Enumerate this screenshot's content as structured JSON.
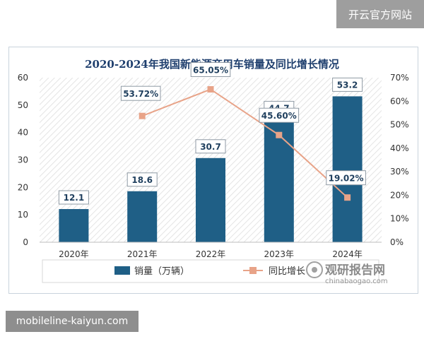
{
  "header": {
    "site_name": "开云官方网站"
  },
  "footer": {
    "url_text": "mobileline-kaiyun.com"
  },
  "watermark": {
    "name": "观研报告网",
    "domain": "chinabaogao.com"
  },
  "colors": {
    "bar": "#1f5f86",
    "line": "#e8a388",
    "title": "#1f3f6e",
    "badge_bg": "#9e9e9e",
    "url_bg": "#8e8e8e"
  },
  "chart_data": {
    "type": "bar",
    "title": "2020-2024年我国新能源商用车销量及同比增长情况",
    "categories": [
      "2020年",
      "2021年",
      "2022年",
      "2023年",
      "2024年"
    ],
    "ylim": [
      0,
      60
    ],
    "y2lim": [
      0,
      70
    ],
    "yticks": [
      "0",
      "10",
      "20",
      "30",
      "40",
      "50",
      "60"
    ],
    "y2ticks": [
      "0%",
      "10%",
      "20%",
      "30%",
      "40%",
      "50%",
      "60%",
      "70%"
    ],
    "series": [
      {
        "name": "销量（万辆）",
        "type": "bar",
        "axis": "left",
        "values": [
          12.1,
          18.6,
          30.7,
          44.7,
          53.2
        ],
        "labels": [
          "12.1",
          "18.6",
          "30.7",
          "44.7",
          "53.2"
        ]
      },
      {
        "name": "同比增长",
        "type": "line",
        "axis": "right",
        "values": [
          null,
          53.72,
          65.05,
          45.6,
          19.02
        ],
        "labels": [
          "",
          "53.72%",
          "65.05%",
          "45.60%",
          "19.02%"
        ]
      }
    ],
    "legend_position": "bottom",
    "grid": false
  }
}
